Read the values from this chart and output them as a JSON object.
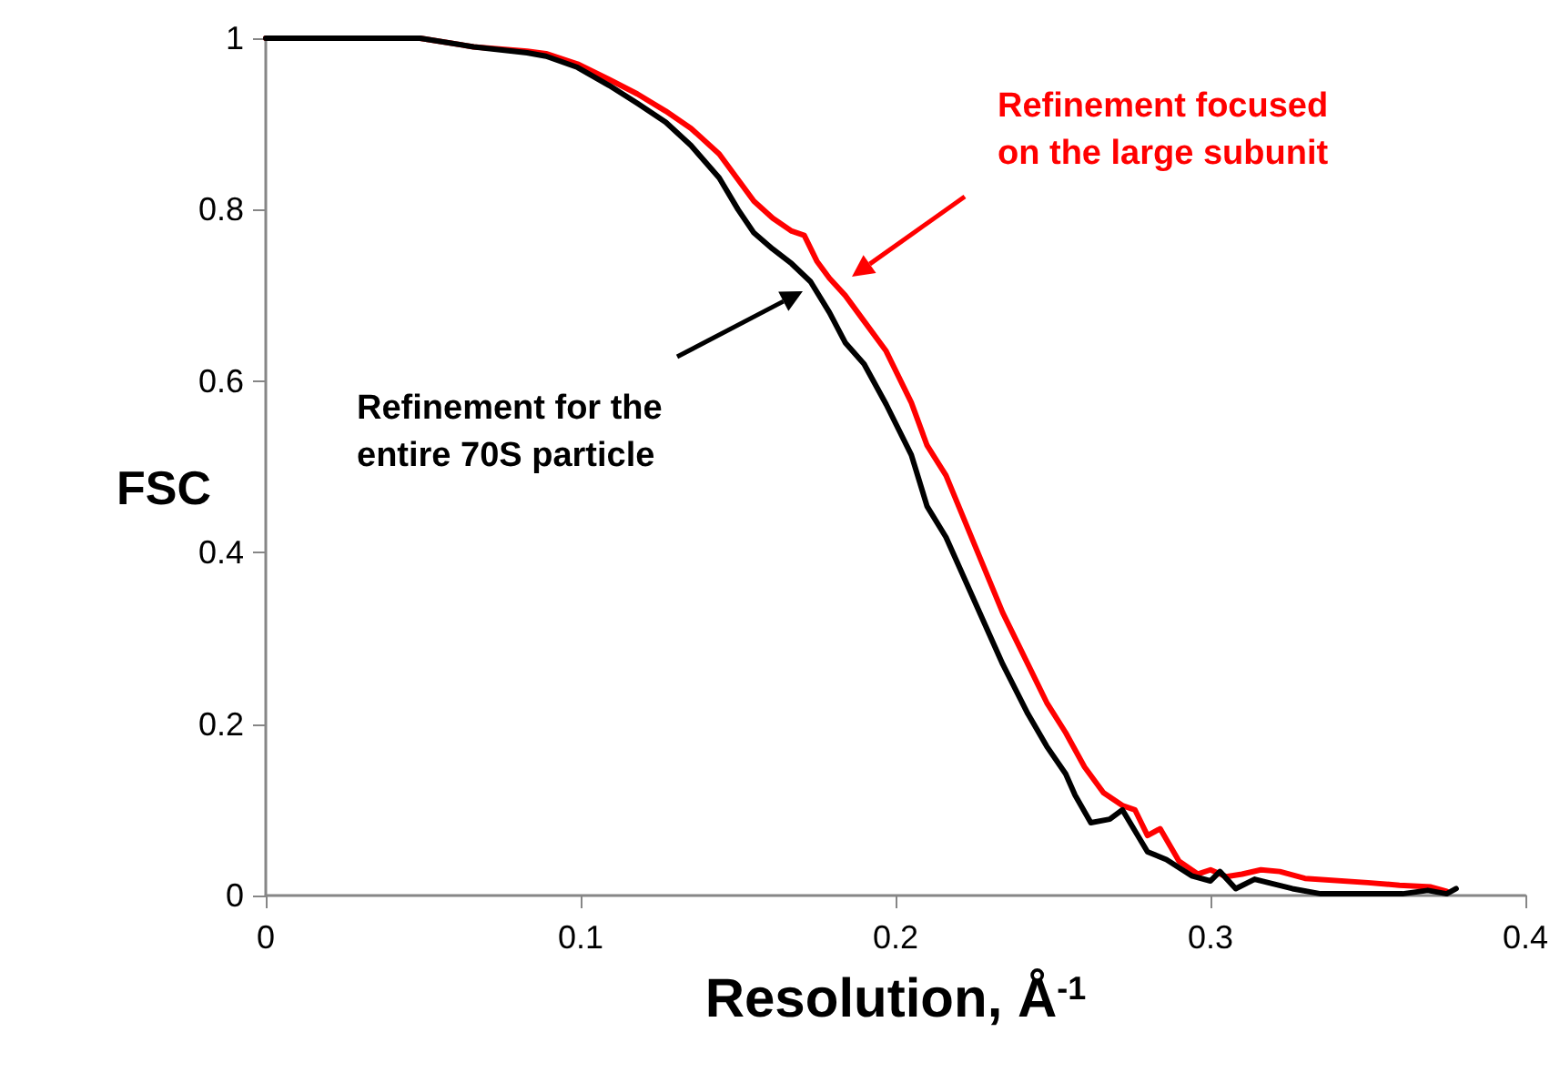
{
  "chart_data": {
    "type": "line",
    "xlabel": "Resolution, Å$^{-1}$",
    "ylabel": "FSC",
    "xlim": [
      0,
      0.4
    ],
    "xticks": [
      0,
      0.1,
      0.2,
      0.3,
      0.4
    ],
    "ylim": [
      0,
      1
    ],
    "yticks": [
      0,
      0.2,
      0.4,
      0.6,
      0.8,
      1
    ],
    "grid": false,
    "marker": "none",
    "line_style": "solid",
    "series": [
      {
        "name": "Refinement focused on the large subunit",
        "color": "#ff0000",
        "x": [
          0,
          0.049,
          0.066,
          0.083,
          0.089,
          0.099,
          0.109,
          0.118,
          0.127,
          0.135,
          0.144,
          0.15,
          0.155,
          0.161,
          0.167,
          0.171,
          0.175,
          0.179,
          0.184,
          0.19,
          0.197,
          0.205,
          0.21,
          0.216,
          0.225,
          0.234,
          0.242,
          0.248,
          0.254,
          0.26,
          0.266,
          0.272,
          0.276,
          0.28,
          0.284,
          0.29,
          0.296,
          0.3,
          0.305,
          0.31,
          0.316,
          0.322,
          0.33,
          0.35,
          0.36,
          0.37,
          0.375
        ],
        "values": [
          1,
          1,
          0.99,
          0.985,
          0.982,
          0.97,
          0.952,
          0.935,
          0.915,
          0.895,
          0.865,
          0.835,
          0.81,
          0.79,
          0.775,
          0.77,
          0.74,
          0.72,
          0.7,
          0.67,
          0.635,
          0.575,
          0.525,
          0.49,
          0.41,
          0.33,
          0.27,
          0.225,
          0.19,
          0.15,
          0.12,
          0.105,
          0.1,
          0.07,
          0.078,
          0.04,
          0.025,
          0.03,
          0.022,
          0.025,
          0.03,
          0.028,
          0.02,
          0.015,
          0.012,
          0.01,
          0.005
        ]
      },
      {
        "name": "Refinement for the entire 70S particle",
        "color": "#000000",
        "x": [
          0,
          0.049,
          0.066,
          0.083,
          0.089,
          0.099,
          0.109,
          0.118,
          0.127,
          0.135,
          0.144,
          0.15,
          0.155,
          0.161,
          0.167,
          0.173,
          0.179,
          0.184,
          0.19,
          0.197,
          0.205,
          0.21,
          0.216,
          0.225,
          0.234,
          0.242,
          0.248,
          0.254,
          0.257,
          0.262,
          0.268,
          0.272,
          0.28,
          0.286,
          0.294,
          0.3,
          0.303,
          0.308,
          0.314,
          0.326,
          0.335,
          0.361,
          0.369,
          0.375,
          0.378
        ],
        "values": [
          1,
          1,
          0.99,
          0.983,
          0.979,
          0.966,
          0.945,
          0.924,
          0.902,
          0.875,
          0.837,
          0.8,
          0.773,
          0.754,
          0.737,
          0.716,
          0.68,
          0.645,
          0.62,
          0.573,
          0.514,
          0.454,
          0.418,
          0.344,
          0.27,
          0.212,
          0.174,
          0.142,
          0.117,
          0.085,
          0.089,
          0.1,
          0.051,
          0.042,
          0.023,
          0.017,
          0.028,
          0.008,
          0.019,
          0.008,
          0.002,
          0.002,
          0.006,
          0.002,
          0.008
        ]
      }
    ]
  }
}
